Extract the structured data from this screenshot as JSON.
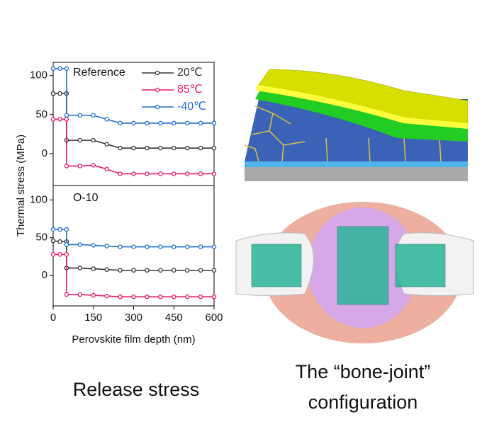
{
  "chart_data": [
    {
      "type": "line",
      "title": "Reference",
      "ylabel": "Thermal stress (MPa)",
      "legend": "upper right",
      "x": [
        0,
        25,
        50,
        50,
        100,
        150,
        200,
        250,
        300,
        350,
        400,
        450,
        500,
        550,
        600
      ],
      "xlim": [
        0,
        600
      ],
      "ylim": [
        -41,
        117
      ],
      "yticks": [
        0,
        50,
        100
      ],
      "series": [
        {
          "name": "20℃",
          "color": "#333333",
          "values": [
            77,
            77,
            77,
            17,
            17,
            17,
            12,
            7,
            7,
            7,
            7,
            7,
            7,
            7,
            7
          ]
        },
        {
          "name": "85℃",
          "color": "#e8196b",
          "values": [
            44,
            44,
            44,
            -16,
            -16,
            -15,
            -20,
            -26,
            -26,
            -26,
            -26,
            -26,
            -26,
            -26,
            -26
          ]
        },
        {
          "name": "-40℃",
          "color": "#1f6fd0",
          "values": [
            109,
            109,
            109,
            49,
            49,
            49,
            44,
            39,
            39,
            39,
            39,
            39,
            39,
            39,
            39
          ]
        }
      ]
    },
    {
      "type": "line",
      "title": "O-10",
      "xlabel": "Perovskite film depth (nm)",
      "x": [
        0,
        25,
        50,
        50,
        100,
        150,
        200,
        250,
        300,
        350,
        400,
        450,
        500,
        550,
        600
      ],
      "xlim": [
        0,
        600
      ],
      "xticks": [
        0,
        150,
        300,
        450,
        600
      ],
      "ylim": [
        -40,
        119
      ],
      "yticks": [
        0,
        50,
        100
      ],
      "series": [
        {
          "color": "#333333",
          "values": [
            46,
            45,
            45,
            10,
            10,
            9,
            8,
            7,
            7,
            7,
            7,
            7,
            7,
            7,
            7
          ]
        },
        {
          "color": "#e8196b",
          "values": [
            28,
            28,
            28,
            -25,
            -25,
            -26,
            -27,
            -28,
            -28,
            -28,
            -28,
            -28,
            -28,
            -28,
            -28
          ]
        },
        {
          "color": "#1f6fd0",
          "values": [
            61,
            61,
            61,
            41,
            41,
            40,
            39,
            38,
            38,
            38,
            38,
            38,
            38,
            38,
            38
          ]
        }
      ]
    }
  ],
  "captions": {
    "left": "Release stress",
    "right": [
      "The “bone-joint”",
      "configuration"
    ]
  }
}
